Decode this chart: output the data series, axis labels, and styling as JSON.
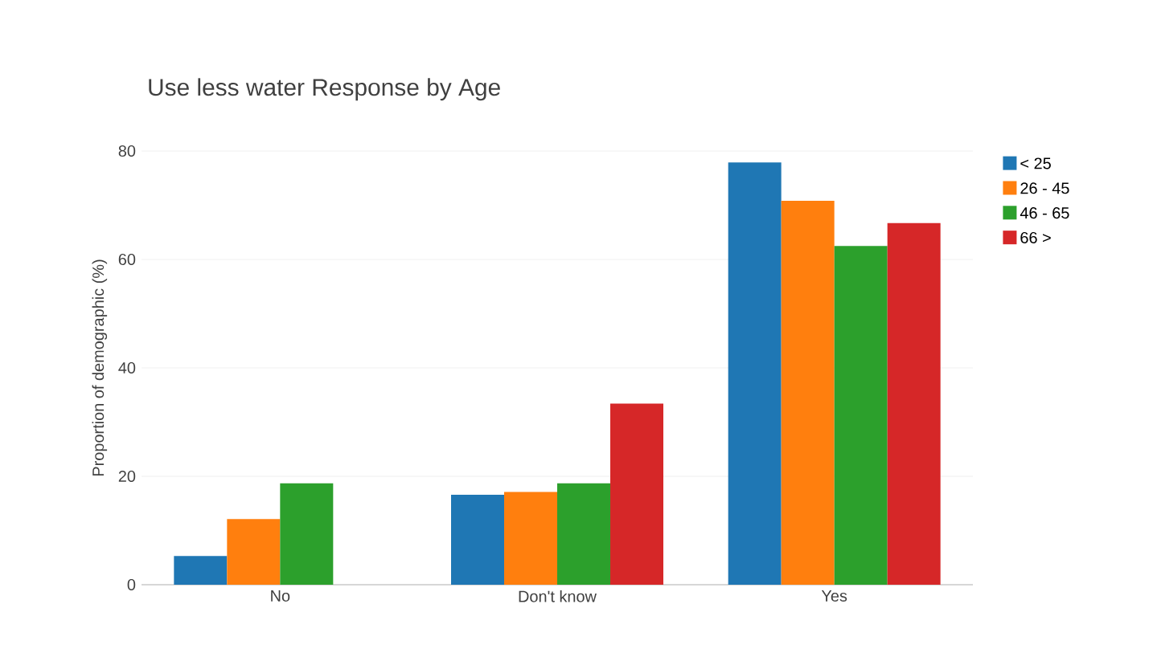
{
  "chart_data": {
    "type": "bar",
    "title": "Use less water Response by Age",
    "ylabel": "Proportion of demographic (%)",
    "categories": [
      "No",
      "Don't know",
      "Yes"
    ],
    "series": [
      {
        "name": "< 25",
        "color": "#1f77b4",
        "values": [
          5.3,
          16.6,
          77.9
        ]
      },
      {
        "name": "26 - 45",
        "color": "#ff7f0e",
        "values": [
          12.1,
          17.1,
          70.8
        ]
      },
      {
        "name": "46 - 65",
        "color": "#2ca02c",
        "values": [
          18.7,
          18.7,
          62.5
        ]
      },
      {
        "name": "66 >",
        "color": "#d62728",
        "values": [
          null,
          33.4,
          66.7
        ]
      }
    ],
    "ylim": [
      0,
      80
    ],
    "yticks": [
      0,
      20,
      40,
      60,
      80
    ],
    "grid": "y",
    "legend": "top right"
  }
}
